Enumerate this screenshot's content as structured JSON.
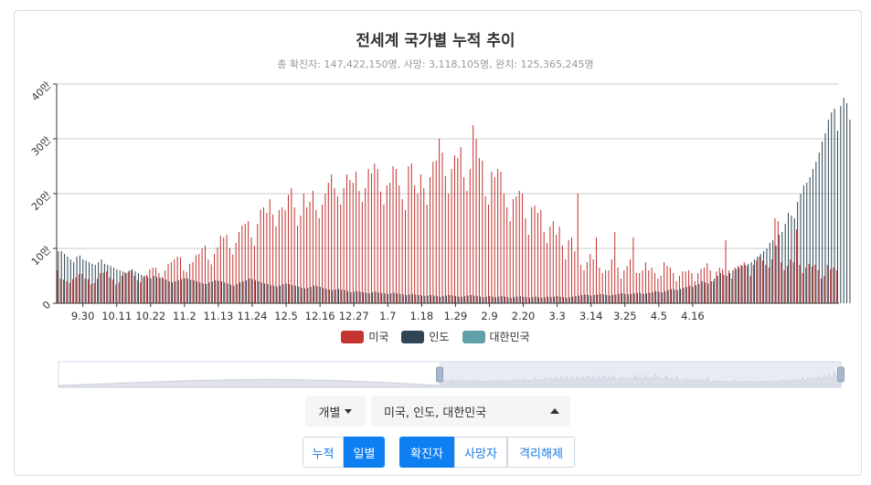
{
  "header": {
    "title": "전세계 국가별 누적 추이",
    "subtitle": "총 확진자: 147,422,150명, 사망: 3,118,105명, 완치: 125,365,245명"
  },
  "controls": {
    "mode_label": "개별",
    "country_label": "미국, 인도, 대한민국",
    "range_buttons": [
      "누적",
      "일별"
    ],
    "range_active": 1,
    "metric_buttons": [
      "확진자",
      "사망자",
      "격리해제"
    ],
    "metric_active": 0
  },
  "colors": {
    "us": "#c23531",
    "india": "#2f4554",
    "korea": "#61a0a8",
    "axis": "#333333",
    "grid": "#cccccc",
    "zoom_fill": "#d4dbe7"
  },
  "chart_data": {
    "type": "bar",
    "title": "전세계 국가별 누적 추이",
    "subtitle": "총 확진자: 147,422,150명, 사망: 3,118,105명, 완치: 125,365,245명",
    "y_unit": "만",
    "ylim": [
      0,
      400000
    ],
    "y_ticks": [
      0,
      100000,
      200000,
      300000,
      400000
    ],
    "y_tick_labels": [
      "0",
      "10만",
      "20만",
      "30만",
      "40만"
    ],
    "x_tick_labels": [
      "9.30",
      "10.11",
      "10.22",
      "11.2",
      "11.13",
      "11.24",
      "12.5",
      "12.16",
      "12.27",
      "1.7",
      "1.18",
      "1.29",
      "2.9",
      "2.20",
      "3.3",
      "3.14",
      "3.25",
      "4.5",
      "4.16"
    ],
    "legend_position": "bottom",
    "grid": true,
    "series": [
      {
        "name": "미국",
        "color": "#c23531",
        "values": [
          60000,
          45000,
          43000,
          40000,
          37000,
          44000,
          47000,
          53000,
          54000,
          45000,
          44000,
          35000,
          37000,
          45000,
          55000,
          56000,
          58000,
          47000,
          43000,
          34000,
          38000,
          50000,
          56000,
          57000,
          60000,
          50000,
          42000,
          38000,
          48000,
          52000,
          62000,
          65000,
          65000,
          55000,
          48000,
          60000,
          72000,
          75000,
          80000,
          85000,
          84000,
          60000,
          57000,
          72000,
          75000,
          88000,
          90000,
          100000,
          105000,
          80000,
          71000,
          90000,
          102000,
          123000,
          120000,
          125000,
          101000,
          89000,
          110000,
          130000,
          142000,
          145000,
          150000,
          120000,
          105000,
          145000,
          171000,
          175000,
          165000,
          190000,
          162000,
          140000,
          170000,
          175000,
          170000,
          198000,
          210000,
          175000,
          142000,
          160000,
          200000,
          175000,
          185000,
          205000,
          170000,
          155000,
          180000,
          200000,
          220000,
          235000,
          210000,
          195000,
          180000,
          210000,
          235000,
          225000,
          220000,
          240000,
          205000,
          185000,
          210000,
          245000,
          237000,
          255000,
          245000,
          204000,
          180000,
          215000,
          220000,
          250000,
          245000,
          215000,
          190000,
          170000,
          250000,
          255000,
          215000,
          200000,
          235000,
          210000,
          180000,
          230000,
          258000,
          260000,
          300000,
          275000,
          232000,
          200000,
          245000,
          270000,
          265000,
          285000,
          230000,
          205000,
          245000,
          325000,
          300000,
          265000,
          260000,
          195000,
          180000,
          240000,
          230000,
          245000,
          240000,
          200000,
          175000,
          150000,
          190000,
          195000,
          205000,
          200000,
          155000,
          125000,
          175000,
          178000,
          165000,
          170000,
          130000,
          110000,
          140000,
          150000,
          125000,
          140000,
          105000,
          80000,
          115000,
          120000,
          95000,
          200000,
          70000,
          60000,
          75000,
          90000,
          80000,
          120000,
          65000,
          55000,
          60000,
          60000,
          80000,
          130000,
          65000,
          45000,
          60000,
          68000,
          80000,
          120000,
          55000,
          55000,
          60000,
          75000,
          60000,
          65000,
          55000,
          45000,
          50000,
          75000,
          68000,
          65000,
          55000,
          40000,
          50000,
          58000,
          58000,
          60000,
          55000,
          40000,
          55000,
          63000,
          65000,
          73000,
          60000,
          40000,
          58000,
          65000,
          62000,
          115000,
          60000,
          45000,
          65000,
          68000,
          70000,
          75000,
          68000,
          50000,
          70000,
          78000,
          85000,
          78000,
          70000,
          65000,
          80000,
          155000,
          150000,
          75000,
          60000,
          68000,
          80000,
          75000,
          135000,
          70000,
          55000,
          65000,
          72000,
          67000,
          70000,
          60000,
          45000,
          50000,
          70000,
          62000,
          65000,
          60000
        ]
      },
      {
        "name": "인도",
        "color": "#2f4554",
        "values": [
          95000,
          95000,
          90000,
          85000,
          80000,
          75000,
          85000,
          87000,
          80000,
          78000,
          75000,
          72000,
          70000,
          75000,
          80000,
          72000,
          70000,
          68000,
          65000,
          62000,
          60000,
          58000,
          55000,
          60000,
          62000,
          58000,
          55000,
          52000,
          50000,
          48000,
          45000,
          50000,
          48000,
          46000,
          45000,
          43000,
          40000,
          38000,
          40000,
          42000,
          44000,
          46000,
          45000,
          43000,
          42000,
          40000,
          38000,
          36000,
          35000,
          38000,
          40000,
          42000,
          41000,
          40000,
          38000,
          36000,
          34000,
          32000,
          35000,
          38000,
          40000,
          42000,
          45000,
          44000,
          42000,
          40000,
          38000,
          36000,
          35000,
          33000,
          32000,
          30000,
          32000,
          35000,
          36000,
          35000,
          33000,
          32000,
          30000,
          28000,
          27000,
          28000,
          30000,
          32000,
          31000,
          30000,
          28000,
          26000,
          25000,
          24000,
          25000,
          26000,
          25000,
          24000,
          22000,
          20000,
          21000,
          22000,
          21000,
          20000,
          19000,
          18000,
          20000,
          21000,
          20000,
          19000,
          18000,
          17000,
          18000,
          19000,
          18000,
          17000,
          16000,
          15000,
          16000,
          17000,
          16000,
          15000,
          14000,
          13000,
          14000,
          15000,
          14000,
          13000,
          12000,
          13000,
          14000,
          15000,
          14000,
          13000,
          12000,
          12000,
          13000,
          14000,
          15000,
          14000,
          13000,
          12000,
          11000,
          12000,
          13000,
          12000,
          11000,
          12000,
          13000,
          12000,
          11000,
          10000,
          11000,
          12000,
          13000,
          12000,
          11000,
          10000,
          11000,
          12000,
          11000,
          10000,
          11000,
          12000,
          11000,
          12000,
          13000,
          12000,
          11000,
          10000,
          11000,
          12000,
          13000,
          14000,
          15000,
          16000,
          15000,
          14000,
          15000,
          16000,
          17000,
          16000,
          15000,
          14000,
          15000,
          16000,
          17000,
          18000,
          17000,
          16000,
          17000,
          18000,
          19000,
          18000,
          17000,
          18000,
          19000,
          20000,
          22000,
          21000,
          20000,
          22000,
          24000,
          26000,
          25000,
          24000,
          26000,
          28000,
          30000,
          32000,
          30000,
          33000,
          35000,
          40000,
          38000,
          36000,
          40000,
          45000,
          50000,
          55000,
          52000,
          50000,
          55000,
          60000,
          62000,
          65000,
          68000,
          70000,
          72000,
          75000,
          80000,
          85000,
          90000,
          95000,
          100000,
          110000,
          115000,
          105000,
          125000,
          130000,
          145000,
          165000,
          160000,
          155000,
          185000,
          200000,
          215000,
          220000,
          230000,
          245000,
          258000,
          275000,
          295000,
          310000,
          335000,
          348000,
          355000,
          315000,
          360000,
          375000,
          365000,
          335000
        ]
      },
      {
        "name": "대한민국",
        "color": "#61a0a8",
        "values": [
          100,
          110,
          120,
          120,
          110,
          100,
          90,
          80,
          75,
          70,
          65,
          60,
          60,
          70,
          80,
          90,
          110,
          100,
          90,
          80,
          80,
          100,
          120,
          110,
          100,
          90,
          80,
          70,
          70,
          80,
          100,
          110,
          120,
          130,
          110,
          100,
          120,
          150,
          170,
          200,
          180,
          160,
          150,
          160,
          180,
          200,
          220,
          230,
          250,
          220,
          200,
          230,
          300,
          330,
          350,
          330,
          280,
          250,
          320,
          380,
          450,
          500,
          480,
          420,
          400,
          450,
          500,
          580,
          600,
          550,
          500,
          480,
          550,
          600,
          630,
          680,
          700,
          650,
          600,
          650,
          700,
          750,
          800,
          850,
          900,
          870,
          850,
          900,
          950,
          1030,
          1080,
          1050,
          950,
          900,
          1000,
          1050,
          1100,
          1000,
          950,
          900,
          870,
          850,
          800,
          750,
          700,
          650,
          620,
          600,
          640,
          670,
          700,
          660,
          620,
          580,
          560,
          540,
          510,
          490,
          470,
          450,
          430,
          420,
          400,
          390,
          380,
          370,
          360,
          350,
          355,
          360,
          380,
          400,
          420,
          400,
          380,
          360,
          350,
          340,
          330,
          320,
          310,
          300,
          330,
          360,
          400,
          420,
          440,
          420,
          400,
          380,
          360,
          350,
          360,
          380,
          400,
          420,
          440,
          460,
          440,
          420,
          400,
          380,
          400,
          420,
          440,
          460,
          450,
          440,
          430,
          420,
          410,
          400,
          420,
          440,
          450,
          460,
          450,
          440,
          430,
          420,
          430,
          450,
          470,
          480,
          460,
          450,
          440,
          430,
          420,
          440,
          460,
          480,
          500,
          480,
          460,
          440,
          430,
          450,
          470,
          490,
          500,
          480,
          460,
          440,
          450,
          480,
          510,
          540,
          560,
          550,
          530,
          520,
          540,
          560,
          580,
          600,
          620,
          610,
          600,
          620,
          650,
          680,
          700,
          690,
          670,
          660,
          680,
          700,
          720,
          740,
          730,
          710,
          700,
          720,
          740,
          760,
          780,
          770,
          760,
          750,
          770,
          790,
          800
        ]
      }
    ]
  }
}
